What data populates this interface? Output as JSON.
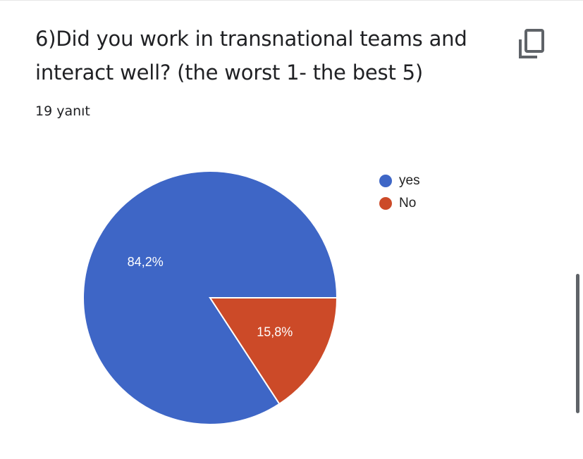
{
  "question": {
    "title": "6)Did you work in transnational teams and interact well? (the worst 1- the best 5)",
    "response_count": "19 yanıt"
  },
  "copy_icon": "copy-chart-icon",
  "chart_data": {
    "type": "pie",
    "title": "",
    "series": [
      {
        "name": "yes",
        "value": 84.2,
        "label": "84,2%",
        "color": "#3e66c6"
      },
      {
        "name": "No",
        "value": 15.8,
        "label": "15,8%",
        "color": "#cc4a28"
      }
    ],
    "legend": "right",
    "start_angle_deg": 0,
    "direction": "counterclockwise"
  }
}
